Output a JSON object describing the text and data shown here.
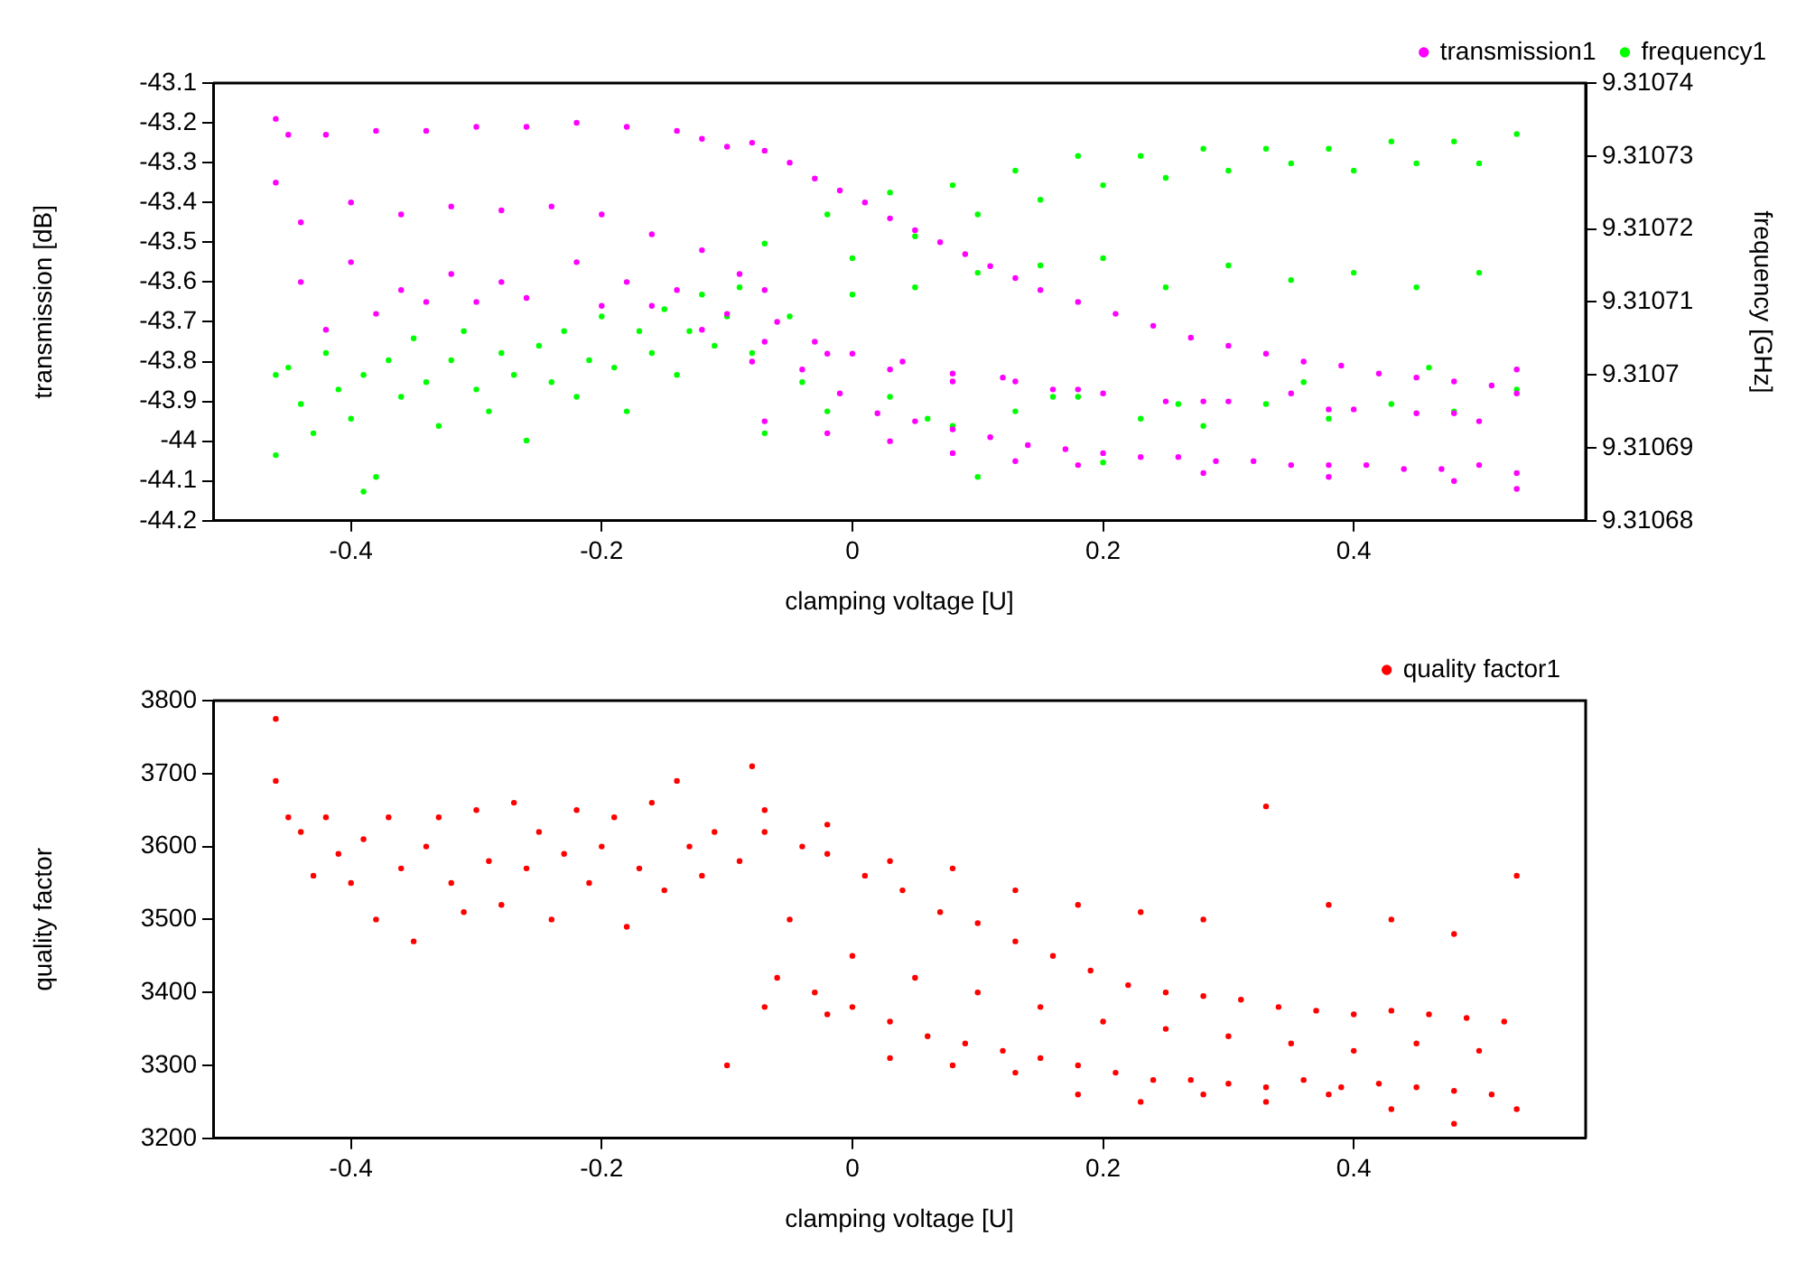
{
  "chart_data": [
    {
      "type": "scatter",
      "xlabel": "clamping voltage [U]",
      "ylabel": "transmission [dB]",
      "y2label": "frequency [GHz]",
      "xlim": [
        -0.51,
        0.585
      ],
      "xticks": [
        -0.4,
        -0.2,
        0,
        0.2,
        0.4
      ],
      "ylim": [
        -44.2,
        -43.1
      ],
      "yticks": [
        -44.2,
        -44.1,
        -44,
        -43.9,
        -43.8,
        -43.7,
        -43.6,
        -43.5,
        -43.4,
        -43.3,
        -43.2,
        -43.1
      ],
      "y2lim": [
        9.31068,
        9.31074
      ],
      "y2ticks": [
        9.31068,
        9.31069,
        9.3107,
        9.31071,
        9.31072,
        9.31073,
        9.31074
      ],
      "legend": "top right",
      "marker": "circle",
      "series": [
        {
          "name": "frequency1",
          "color": "#00ff00",
          "axis": "y2",
          "x": [
            -0.46,
            -0.46,
            -0.45,
            -0.44,
            -0.43,
            -0.42,
            -0.41,
            -0.4,
            -0.39,
            -0.38,
            -0.37,
            -0.36,
            -0.35,
            -0.34,
            -0.33,
            -0.32,
            -0.31,
            -0.3,
            -0.29,
            -0.28,
            -0.27,
            -0.26,
            -0.25,
            -0.24,
            -0.23,
            -0.22,
            -0.21,
            -0.2,
            -0.19,
            -0.18,
            -0.17,
            -0.16,
            -0.15,
            -0.14,
            -0.13,
            -0.12,
            -0.11,
            -0.1,
            -0.09,
            -0.08,
            -0.39,
            -0.07,
            -0.07,
            -0.02,
            -0.02,
            0.03,
            0.03,
            0.08,
            0.08,
            0.13,
            0.13,
            0.18,
            0.18,
            0.23,
            0.23,
            0.28,
            0.28,
            0.33,
            0.33,
            0.38,
            0.38,
            0.43,
            0.43,
            0.48,
            0.48,
            0.53,
            0.53,
            0,
            0.05,
            0.1,
            0.15,
            0.2,
            0.25,
            0.3,
            0.35,
            0.4,
            0.45,
            0.5,
            -0.05,
            0,
            0.05,
            0.1,
            0.15,
            0.2,
            0.25,
            0.3,
            0.35,
            0.4,
            0.45,
            0.5,
            -0.04,
            0.06,
            0.16,
            0.26,
            0.36,
            0.46,
            0.1,
            0.2
          ],
          "values": [
            9.3107,
            9.310689,
            9.310701,
            9.310696,
            9.310692,
            9.310703,
            9.310698,
            9.310694,
            9.3107,
            9.310686,
            9.310702,
            9.310697,
            9.310705,
            9.310699,
            9.310693,
            9.310702,
            9.310706,
            9.310698,
            9.310695,
            9.310703,
            9.3107,
            9.310691,
            9.310704,
            9.310699,
            9.310706,
            9.310697,
            9.310702,
            9.310708,
            9.310701,
            9.310695,
            9.310706,
            9.310703,
            9.310709,
            9.3107,
            9.310706,
            9.310711,
            9.310704,
            9.310708,
            9.310712,
            9.310703,
            9.310684,
            9.310692,
            9.310718,
            9.310695,
            9.310722,
            9.310697,
            9.310725,
            9.310693,
            9.310726,
            9.310695,
            9.310728,
            9.310697,
            9.31073,
            9.310694,
            9.31073,
            9.310693,
            9.310731,
            9.310696,
            9.310731,
            9.310694,
            9.310731,
            9.310696,
            9.310732,
            9.310695,
            9.310732,
            9.310698,
            9.310733,
            9.310716,
            9.310719,
            9.310722,
            9.310724,
            9.310726,
            9.310727,
            9.310728,
            9.310729,
            9.310728,
            9.310729,
            9.310729,
            9.310708,
            9.310711,
            9.310712,
            9.310714,
            9.310715,
            9.310716,
            9.310712,
            9.310715,
            9.310713,
            9.310714,
            9.310712,
            9.310714,
            9.310699,
            9.310694,
            9.310697,
            9.310696,
            9.310699,
            9.310701,
            9.310686,
            9.310688
          ]
        },
        {
          "name": "transmission1",
          "color": "#ff00ff",
          "x": [
            -0.46,
            -0.45,
            -0.42,
            -0.38,
            -0.34,
            -0.3,
            -0.26,
            -0.22,
            -0.18,
            -0.14,
            -0.12,
            -0.1,
            -0.08,
            -0.46,
            -0.44,
            -0.4,
            -0.36,
            -0.32,
            -0.28,
            -0.24,
            -0.2,
            -0.16,
            -0.12,
            -0.09,
            -0.44,
            -0.4,
            -0.36,
            -0.32,
            -0.28,
            -0.22,
            -0.18,
            -0.14,
            -0.1,
            -0.42,
            -0.38,
            -0.34,
            -0.3,
            -0.26,
            -0.2,
            -0.16,
            -0.12,
            -0.08,
            -0.07,
            -0.05,
            -0.03,
            -0.01,
            0.01,
            0.03,
            0.05,
            0.07,
            0.09,
            0.11,
            0.13,
            0.15,
            0.18,
            0.21,
            0.24,
            0.27,
            0.3,
            0.33,
            0.36,
            0.39,
            0.42,
            0.45,
            0.48,
            0.51,
            0.53,
            -0.07,
            -0.04,
            -0.01,
            0.02,
            0.05,
            0.08,
            0.11,
            0.14,
            0.17,
            0.2,
            0.23,
            0.26,
            0.29,
            0.32,
            0.35,
            0.38,
            0.41,
            0.44,
            0.47,
            0.5,
            0.53,
            -0.06,
            -0.03,
            0,
            0.04,
            0.08,
            0.12,
            0.16,
            0.2,
            0.25,
            0.3,
            0.35,
            0.4,
            0.45,
            0.5,
            -0.07,
            -0.07,
            -0.02,
            -0.02,
            0.03,
            0.03,
            0.08,
            0.08,
            0.13,
            0.13,
            0.18,
            0.18,
            0.28,
            0.28,
            0.38,
            0.38,
            0.48,
            0.48,
            0.53,
            0.53
          ],
          "values": [
            -43.19,
            -43.23,
            -43.23,
            -43.22,
            -43.22,
            -43.21,
            -43.21,
            -43.2,
            -43.21,
            -43.22,
            -43.24,
            -43.26,
            -43.25,
            -43.35,
            -43.45,
            -43.4,
            -43.43,
            -43.41,
            -43.42,
            -43.41,
            -43.43,
            -43.48,
            -43.52,
            -43.58,
            -43.6,
            -43.55,
            -43.62,
            -43.58,
            -43.6,
            -43.55,
            -43.6,
            -43.62,
            -43.68,
            -43.72,
            -43.68,
            -43.65,
            -43.65,
            -43.64,
            -43.66,
            -43.66,
            -43.72,
            -43.8,
            -43.27,
            -43.3,
            -43.34,
            -43.37,
            -43.4,
            -43.44,
            -43.47,
            -43.5,
            -43.53,
            -43.56,
            -43.59,
            -43.62,
            -43.65,
            -43.68,
            -43.71,
            -43.74,
            -43.76,
            -43.78,
            -43.8,
            -43.81,
            -43.83,
            -43.84,
            -43.85,
            -43.86,
            -43.88,
            -43.75,
            -43.82,
            -43.88,
            -43.93,
            -43.95,
            -43.97,
            -43.99,
            -44.01,
            -44.02,
            -44.03,
            -44.04,
            -44.04,
            -44.05,
            -44.05,
            -44.06,
            -44.06,
            -44.06,
            -44.07,
            -44.07,
            -44.06,
            -44.08,
            -43.7,
            -43.75,
            -43.78,
            -43.8,
            -43.85,
            -43.84,
            -43.87,
            -43.88,
            -43.9,
            -43.9,
            -43.88,
            -43.92,
            -43.93,
            -43.95,
            -43.62,
            -43.95,
            -43.78,
            -43.98,
            -43.82,
            -44,
            -43.83,
            -44.03,
            -43.85,
            -44.05,
            -43.87,
            -44.06,
            -43.9,
            -44.08,
            -43.92,
            -44.09,
            -43.93,
            -44.1,
            -43.82,
            -44.12
          ]
        }
      ]
    },
    {
      "type": "scatter",
      "xlabel": "clamping voltage [U]",
      "ylabel": "quality factor",
      "xlim": [
        -0.51,
        0.585
      ],
      "xticks": [
        -0.4,
        -0.2,
        0,
        0.2,
        0.4
      ],
      "ylim": [
        3200,
        3800
      ],
      "yticks": [
        3200,
        3300,
        3400,
        3500,
        3600,
        3700,
        3800
      ],
      "legend": "top right",
      "marker": "circle",
      "series": [
        {
          "name": "quality factor1",
          "color": "#ff0000",
          "x": [
            -0.46,
            -0.46,
            -0.45,
            -0.44,
            -0.43,
            -0.42,
            -0.41,
            -0.4,
            -0.39,
            -0.38,
            -0.37,
            -0.36,
            -0.35,
            -0.34,
            -0.33,
            -0.32,
            -0.31,
            -0.3,
            -0.29,
            -0.28,
            -0.27,
            -0.26,
            -0.25,
            -0.24,
            -0.23,
            -0.22,
            -0.21,
            -0.2,
            -0.19,
            -0.18,
            -0.17,
            -0.16,
            -0.15,
            -0.14,
            -0.13,
            -0.12,
            -0.11,
            -0.1,
            -0.09,
            -0.08,
            -0.07,
            -0.04,
            -0.02,
            0.01,
            0.04,
            0.07,
            0.1,
            0.13,
            0.16,
            0.19,
            0.22,
            0.25,
            0.28,
            0.31,
            0.34,
            0.37,
            0.4,
            0.43,
            0.46,
            0.49,
            0.52,
            -0.06,
            -0.03,
            0,
            0.03,
            0.06,
            0.09,
            0.12,
            0.15,
            0.18,
            0.21,
            0.24,
            0.27,
            0.3,
            0.33,
            0.36,
            0.39,
            0.42,
            0.45,
            0.48,
            0.51,
            -0.05,
            0,
            0.05,
            0.1,
            0.15,
            0.2,
            0.25,
            0.3,
            0.35,
            0.4,
            0.45,
            0.5,
            -0.07,
            -0.07,
            -0.02,
            -0.02,
            0.03,
            0.03,
            0.08,
            0.08,
            0.13,
            0.13,
            0.18,
            0.18,
            0.23,
            0.23,
            0.28,
            0.28,
            0.33,
            0.33,
            0.38,
            0.38,
            0.43,
            0.43,
            0.48,
            0.48,
            0.53,
            0.53
          ],
          "values": [
            3775,
            3690,
            3640,
            3620,
            3560,
            3640,
            3590,
            3550,
            3610,
            3500,
            3640,
            3570,
            3470,
            3600,
            3640,
            3550,
            3510,
            3650,
            3580,
            3520,
            3660,
            3570,
            3620,
            3500,
            3590,
            3650,
            3550,
            3600,
            3640,
            3490,
            3570,
            3660,
            3540,
            3690,
            3600,
            3560,
            3620,
            3300,
            3580,
            3710,
            3620,
            3600,
            3590,
            3560,
            3540,
            3510,
            3495,
            3470,
            3450,
            3430,
            3410,
            3400,
            3395,
            3390,
            3380,
            3375,
            3370,
            3375,
            3370,
            3365,
            3360,
            3420,
            3400,
            3380,
            3360,
            3340,
            3330,
            3320,
            3310,
            3300,
            3290,
            3280,
            3280,
            3275,
            3270,
            3280,
            3270,
            3275,
            3270,
            3265,
            3260,
            3500,
            3450,
            3420,
            3400,
            3380,
            3360,
            3350,
            3340,
            3330,
            3320,
            3330,
            3320,
            3650,
            3380,
            3630,
            3370,
            3580,
            3310,
            3570,
            3300,
            3540,
            3290,
            3520,
            3260,
            3510,
            3250,
            3500,
            3260,
            3655,
            3250,
            3520,
            3260,
            3500,
            3240,
            3480,
            3220,
            3560,
            3240
          ]
        }
      ]
    }
  ]
}
